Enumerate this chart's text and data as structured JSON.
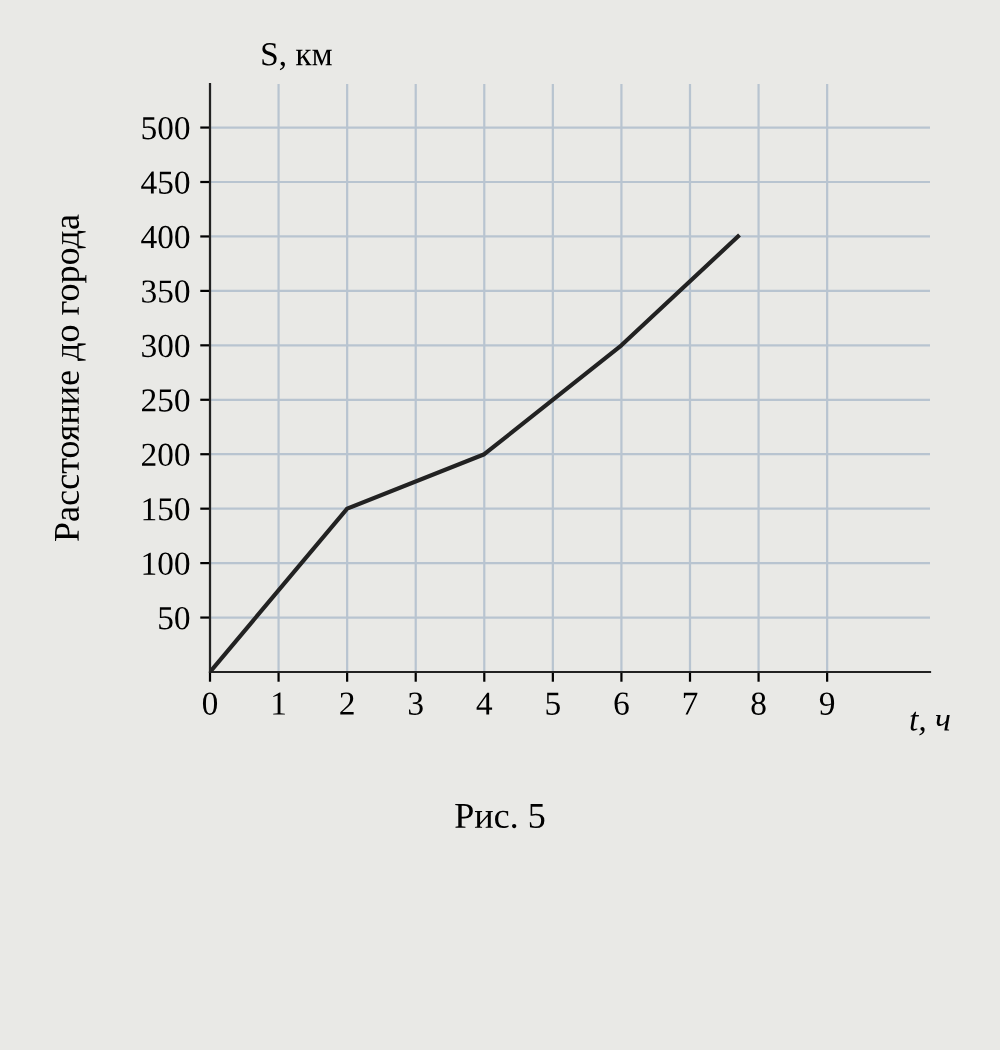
{
  "chart_data": {
    "type": "line",
    "xlabel": "t, ч",
    "ylabel": "S, км",
    "annotations": [
      "Расстояние до города",
      "Рис. 5"
    ],
    "x": [
      0,
      2,
      4,
      6,
      7.7
    ],
    "series": [
      {
        "color": "#222222",
        "values": [
          0,
          150,
          200,
          300,
          400
        ]
      }
    ],
    "xlim": [
      0,
      10.5
    ],
    "ylim": [
      0,
      540
    ],
    "xticks": [
      0,
      1,
      2,
      3,
      4,
      5,
      6,
      7,
      8,
      9
    ],
    "yticks": [
      50,
      100,
      150,
      200,
      250,
      300,
      350,
      400,
      450,
      500
    ],
    "grid": true,
    "marker": "none",
    "line_style": "solid"
  }
}
